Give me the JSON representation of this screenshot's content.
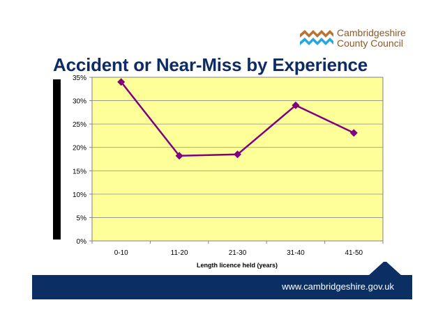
{
  "logo": {
    "line1": "Cambridgeshire",
    "line2": "County Council"
  },
  "slide": {
    "title": "Accident or Near-Miss by Experience"
  },
  "footer": {
    "url": "www.cambridgeshire.gov.uk"
  },
  "colors": {
    "title": "#0e2b63",
    "plot_bg": "#ffff99",
    "series": "#800080",
    "footer": "#0c2f63",
    "logo_brown": "#b87333",
    "logo_blue": "#2aa6d8"
  },
  "chart_data": {
    "type": "line",
    "categories": [
      "0-10",
      "11-20",
      "21-30",
      "31-40",
      "41-50"
    ],
    "series": [
      {
        "values": [
          34,
          18.2,
          18.5,
          29,
          23.1
        ]
      }
    ],
    "xlabel": "Length licence held (years)",
    "ylabel": "",
    "ylim": [
      0,
      35
    ],
    "yticks": [
      "0%",
      "5%",
      "10%",
      "15%",
      "20%",
      "25%",
      "30%",
      "35%"
    ],
    "grid": true,
    "legend": "none"
  }
}
